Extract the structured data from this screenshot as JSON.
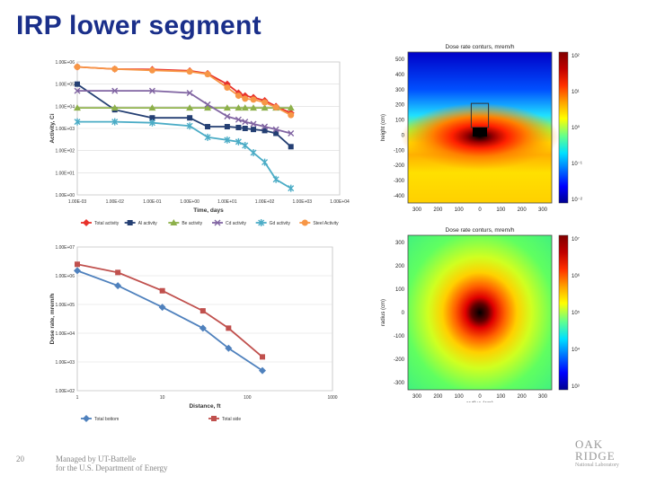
{
  "slide": {
    "title": "IRP lower segment",
    "page_number": "20",
    "footer_line1": "Managed by UT-Battelle",
    "footer_line2": "for the U.S. Department of Energy",
    "logo_line1": "OAK",
    "logo_line2": "RIDGE",
    "logo_line3": "National Laboratory"
  },
  "colors": {
    "title": "#1a2f8a",
    "total": "#e8322b",
    "al": "#243f73",
    "be": "#8db04a",
    "cd": "#8064a2",
    "gd": "#4bacc6",
    "steel": "#f79646",
    "bottom": "#4f81bd",
    "side": "#c0504d"
  },
  "chart_data": [
    {
      "type": "line",
      "xlabel": "Time, days",
      "ylabel": "Activity, Ci",
      "x_scale": "log",
      "y_scale": "log",
      "xticks": [
        "1.00E-03",
        "1.00E-02",
        "1.00E-01",
        "1.00E+00",
        "1.00E+01",
        "1.00E+02",
        "1.00E+03",
        "1.00E+04"
      ],
      "yticks": [
        "1.00E+00",
        "1.00E+01",
        "1.00E+02",
        "1.00E+03",
        "1.00E+04",
        "1.00E+05",
        "1.00E+06"
      ],
      "xlim": [
        0.001,
        10000
      ],
      "ylim": [
        1,
        1000000
      ],
      "legend_position": "bottom",
      "series": [
        {
          "name": "Total activity",
          "color": "#e8322b",
          "marker": "diamond",
          "x": [
            0.001,
            0.01,
            0.1,
            1,
            3,
            10,
            20,
            30,
            50,
            100,
            200,
            500
          ],
          "y": [
            600000,
            480000,
            460000,
            400000,
            300000,
            100000,
            40000,
            30000,
            25000,
            18000,
            10000,
            5000
          ]
        },
        {
          "name": "Al activity",
          "color": "#243f73",
          "marker": "square",
          "x": [
            0.001,
            0.01,
            0.1,
            1,
            3,
            10,
            20,
            30,
            50,
            100,
            200,
            500
          ],
          "y": [
            100000,
            7000,
            3000,
            3000,
            1200,
            1200,
            1100,
            1000,
            900,
            800,
            600,
            150
          ]
        },
        {
          "name": "Be activity",
          "color": "#8db04a",
          "marker": "triangle",
          "x": [
            0.001,
            0.01,
            0.1,
            1,
            3,
            10,
            20,
            30,
            50,
            100,
            200,
            500
          ],
          "y": [
            8500,
            8500,
            8500,
            8500,
            8500,
            8500,
            8500,
            8500,
            8500,
            8500,
            8500,
            8500
          ]
        },
        {
          "name": "Cd activity",
          "color": "#8064a2",
          "marker": "x",
          "x": [
            0.001,
            0.01,
            0.1,
            1,
            3,
            10,
            20,
            30,
            50,
            100,
            200,
            500
          ],
          "y": [
            50000,
            50000,
            50000,
            40000,
            12000,
            3500,
            2500,
            2000,
            1600,
            1200,
            900,
            600
          ]
        },
        {
          "name": "Gd activity",
          "color": "#4bacc6",
          "marker": "star",
          "x": [
            0.001,
            0.01,
            0.1,
            1,
            3,
            10,
            20,
            30,
            50,
            100,
            200,
            500
          ],
          "y": [
            2000,
            2000,
            1800,
            1300,
            400,
            300,
            250,
            170,
            80,
            30,
            5,
            2
          ]
        },
        {
          "name": "Steel Activity",
          "color": "#f79646",
          "marker": "circle",
          "x": [
            0.001,
            0.01,
            0.1,
            1,
            3,
            10,
            20,
            30,
            50,
            100,
            200,
            500
          ],
          "y": [
            600000,
            480000,
            420000,
            370000,
            280000,
            70000,
            30000,
            22000,
            20000,
            15000,
            9000,
            4000
          ]
        }
      ]
    },
    {
      "type": "line",
      "xlabel": "Distance, ft",
      "ylabel": "Dose rate, mrem/h",
      "x_scale": "log",
      "y_scale": "log",
      "xticks": [
        "1",
        "10",
        "100",
        "1000"
      ],
      "yticks": [
        "1.00E+02",
        "1.00E+03",
        "1.00E+04",
        "1.00E+05",
        "1.00E+06",
        "1.00E+07"
      ],
      "xlim": [
        1,
        1000
      ],
      "ylim": [
        100,
        10000000
      ],
      "legend_position": "bottom",
      "series": [
        {
          "name": "Total bottom",
          "color": "#4f81bd",
          "marker": "diamond",
          "x": [
            1,
            3,
            10,
            30,
            60,
            150
          ],
          "y": [
            1500000,
            450000,
            80000,
            15000,
            3000,
            500
          ]
        },
        {
          "name": "Total side",
          "color": "#c0504d",
          "marker": "square",
          "x": [
            1,
            3,
            10,
            30,
            60,
            150
          ],
          "y": [
            2500000,
            1300000,
            300000,
            60000,
            15000,
            1500
          ]
        }
      ]
    },
    {
      "type": "heatmap",
      "title": "Dose rate conturs, mrem/h",
      "xlabel": "radius (cm)",
      "ylabel": "height (cm)",
      "xticks": [
        "300",
        "200",
        "100",
        "0",
        "100",
        "200",
        "300"
      ],
      "yticks": [
        "500",
        "400",
        "300",
        "200",
        "100",
        "0",
        "-100",
        "-200",
        "-300",
        "-400"
      ],
      "colorbar_ticks": [
        "10²",
        "10¹",
        "10⁰",
        "10⁻¹",
        "10⁻²"
      ]
    },
    {
      "type": "heatmap",
      "title": "Dose rate conturs, mrem/h",
      "xlabel": "radius (cm)",
      "ylabel": "radius (cm)",
      "xticks": [
        "300",
        "200",
        "100",
        "0",
        "100",
        "200",
        "300"
      ],
      "yticks": [
        "300",
        "200",
        "100",
        "0",
        "-100",
        "-200",
        "-300"
      ],
      "colorbar_ticks": [
        "10⁷",
        "10⁶",
        "10⁵",
        "10⁴",
        "10³"
      ]
    }
  ]
}
